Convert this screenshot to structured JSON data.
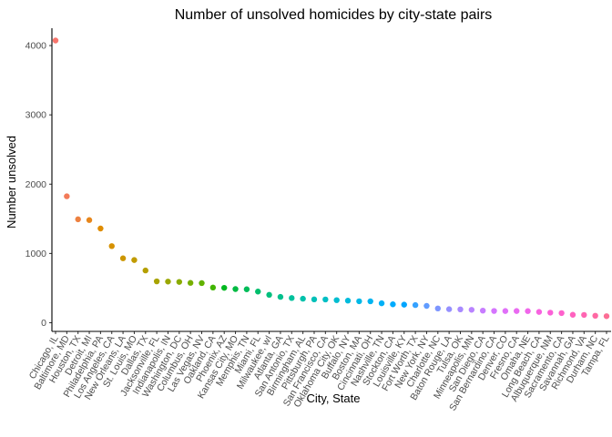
{
  "chart_data": {
    "type": "scatter",
    "title": "Number of unsolved homicides by city-state pairs",
    "xlabel": "City, State",
    "ylabel": "Number unsolved",
    "ylim": [
      0,
      4100
    ],
    "y_ticks": [
      0,
      1000,
      2000,
      3000,
      4000
    ],
    "grid": false,
    "legend": "none",
    "categories": [
      "Chicago, IL",
      "Baltimore, MD",
      "Houston, TX",
      "Detroit, MI",
      "Philadelphia, PA",
      "Los Angeles, CA",
      "New Orleans, LA",
      "St. Louis, MO",
      "Dallas, TX",
      "Jacksonville, FL",
      "Indianapolis, IN",
      "Washington, DC",
      "Columbus, OH",
      "Las Vegas, NV",
      "Oakland, CA",
      "Phoenix, AZ",
      "Kansas City, MO",
      "Memphis, TN",
      "Miami, FL",
      "Milwaukee, wI",
      "Atlanta, GA",
      "San Antonio, TX",
      "Birmingham, AL",
      "Pittsburgh, PA",
      "San Francisco, CA",
      "Oklahoma City, OK",
      "Buffalo, NY",
      "Boston, MA",
      "Cincinnati, OH",
      "Nashville, TN",
      "Stockton, CA",
      "Louisville, KY",
      "Fort Worth, TX",
      "New York, NY",
      "Charlotte, NC",
      "Baton Rouge, LA",
      "Tulsa, OK",
      "Minneapolis, MN",
      "San Diego, CA",
      "San Bernardino, CA",
      "Denver, CO",
      "Fresno, CA",
      "Omaha, NE",
      "Long Beach, CA",
      "Albuquerque, NM",
      "Sacramento, CA",
      "Savannah, GA",
      "Richmond, VA",
      "Durham, NC",
      "Tampa, FL"
    ],
    "values": [
      4073,
      1825,
      1493,
      1482,
      1360,
      1106,
      930,
      905,
      754,
      597,
      594,
      589,
      575,
      572,
      508,
      504,
      486,
      483,
      450,
      403,
      373,
      357,
      347,
      337,
      336,
      326,
      319,
      310,
      309,
      281,
      266,
      261,
      255,
      243,
      206,
      196,
      193,
      187,
      175,
      170,
      169,
      169,
      168,
      156,
      146,
      139,
      115,
      113,
      101,
      95
    ],
    "colors": [
      "#F8766D",
      "#F37B59",
      "#ED8141",
      "#E7861B",
      "#DF8C00",
      "#D69100",
      "#CC9600",
      "#C19B00",
      "#B59F00",
      "#A8A300",
      "#9AA700",
      "#8AAB00",
      "#77AF00",
      "#61B200",
      "#41B500",
      "#00B81F",
      "#00BA42",
      "#00BC59",
      "#00BE6C",
      "#00BF7D",
      "#00C08D",
      "#00C19C",
      "#00C1AB",
      "#00C0B8",
      "#00BFC4",
      "#00BDD0",
      "#00BBDC",
      "#00B8E7",
      "#00B4F0",
      "#00B0F6",
      "#00ABFD",
      "#00A5FF",
      "#35A2FF",
      "#619CFF",
      "#7D96FF",
      "#9590FF",
      "#A88AFF",
      "#B983FF",
      "#C77CFF",
      "#D575FE",
      "#E070F8",
      "#E96AF1",
      "#F066EA",
      "#F763E0",
      "#FB61D7",
      "#FE61CC",
      "#FF62BF",
      "#FF65B2",
      "#FF68A3",
      "#FC6E95"
    ]
  }
}
